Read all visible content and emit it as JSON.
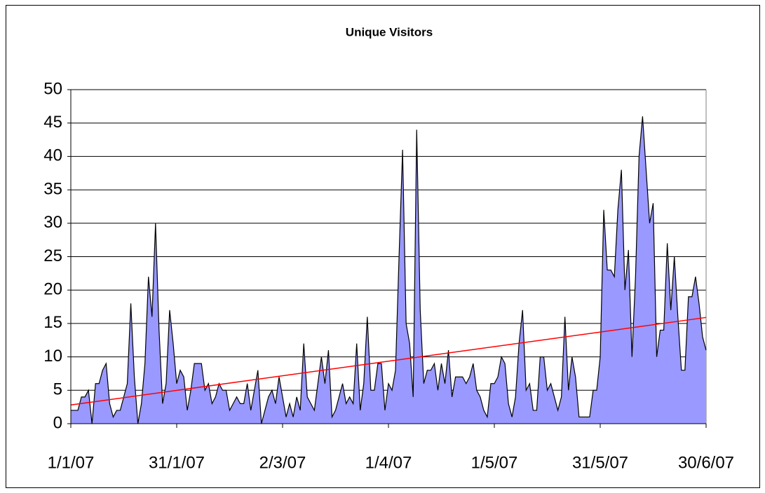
{
  "chart_data": {
    "type": "area",
    "title": "Unique Visitors",
    "categories": [
      "1/1/07",
      null,
      null,
      null,
      null,
      null,
      null,
      null,
      null,
      null,
      null,
      null,
      null,
      null,
      null,
      null,
      null,
      null,
      null,
      null,
      null,
      null,
      null,
      null,
      null,
      null,
      null,
      null,
      null,
      null,
      "31/1/07",
      null,
      null,
      null,
      null,
      null,
      null,
      null,
      null,
      null,
      null,
      null,
      null,
      null,
      null,
      null,
      null,
      null,
      null,
      null,
      null,
      null,
      null,
      null,
      null,
      null,
      null,
      null,
      null,
      null,
      "2/3/07",
      null,
      null,
      null,
      null,
      null,
      null,
      null,
      null,
      null,
      null,
      null,
      null,
      null,
      null,
      null,
      null,
      null,
      null,
      null,
      null,
      null,
      null,
      null,
      null,
      null,
      null,
      null,
      null,
      null,
      "1/4/07",
      null,
      null,
      null,
      null,
      null,
      null,
      null,
      null,
      null,
      null,
      null,
      null,
      null,
      null,
      null,
      null,
      null,
      null,
      null,
      null,
      null,
      null,
      null,
      null,
      null,
      null,
      null,
      null,
      null,
      "1/5/07",
      null,
      null,
      null,
      null,
      null,
      null,
      null,
      null,
      null,
      null,
      null,
      null,
      null,
      null,
      null,
      null,
      null,
      null,
      null,
      null,
      null,
      null,
      null,
      null,
      null,
      null,
      null,
      null,
      null,
      "31/5/07",
      null,
      null,
      null,
      null,
      null,
      null,
      null,
      null,
      null,
      null,
      null,
      null,
      null,
      null,
      null,
      null,
      null,
      null,
      null,
      null,
      null,
      null,
      null,
      null,
      null,
      null,
      null,
      null,
      null,
      "30/6/07"
    ],
    "series": [
      {
        "name": "Unique Visitors",
        "color": "#9999ff",
        "values": [
          2,
          2,
          2,
          4,
          4,
          5,
          0,
          6,
          6,
          8,
          9,
          3,
          1,
          2,
          2,
          4,
          6,
          18,
          7,
          0,
          3,
          9,
          22,
          16,
          30,
          14,
          3,
          6,
          17,
          12,
          6,
          8,
          7,
          2,
          5,
          9,
          9,
          9,
          5,
          6,
          3,
          4,
          6,
          5,
          5,
          2,
          3,
          4,
          3,
          3,
          6,
          2,
          5,
          8,
          0,
          2,
          4,
          5,
          3,
          7,
          4,
          1,
          3,
          1,
          4,
          2,
          12,
          4,
          3,
          2,
          6,
          10,
          6,
          11,
          1,
          2,
          4,
          6,
          3,
          4,
          3,
          12,
          2,
          6,
          16,
          5,
          5,
          9,
          9,
          2,
          6,
          5,
          8,
          25,
          41,
          15,
          12,
          4,
          44,
          17,
          6,
          8,
          8,
          9,
          5,
          9,
          6,
          11,
          4,
          7,
          7,
          7,
          6,
          7,
          9,
          5,
          4,
          2,
          1,
          6,
          6,
          7,
          10,
          9,
          3,
          1,
          4,
          12,
          17,
          5,
          6,
          2,
          2,
          10,
          10,
          5,
          6,
          4,
          2,
          4,
          16,
          5,
          10,
          7,
          1,
          1,
          1,
          1,
          5,
          5,
          10,
          32,
          23,
          23,
          22,
          32,
          38,
          20,
          26,
          10,
          22,
          40,
          46,
          38,
          30,
          33,
          10,
          14,
          14,
          27,
          17,
          25,
          16,
          8,
          8,
          19,
          19,
          22,
          18,
          13,
          11
        ]
      }
    ],
    "trendline": {
      "color": "#ff0000",
      "values": [
        2.8,
        15.9
      ]
    },
    "ylim": [
      0,
      50
    ],
    "yticks": [
      0,
      5,
      10,
      15,
      20,
      25,
      30,
      35,
      40,
      45,
      50
    ],
    "grid": true
  }
}
